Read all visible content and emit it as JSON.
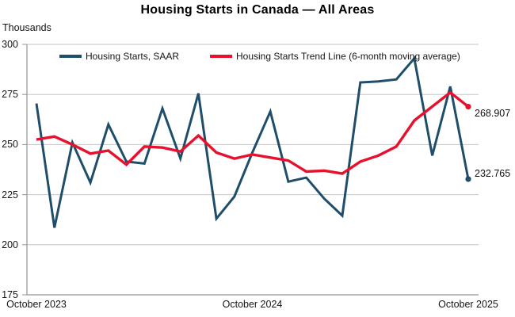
{
  "title": "Housing Starts in Canada — All Areas",
  "y_axis_unit": "Thousands",
  "colors": {
    "saar_line": "#1F4E6B",
    "trend_line": "#E8112D",
    "gridline": "#C6C6C6",
    "axis": "#949494",
    "text": "#111111",
    "background": "#FFFFFF"
  },
  "chart_data": {
    "type": "line",
    "title": "Housing Starts in Canada — All Areas",
    "ylabel": "Thousands",
    "ylim": [
      175,
      300
    ],
    "y_ticks": [
      175,
      200,
      225,
      250,
      275,
      300
    ],
    "grid": "horizontal",
    "legend_position": "top-inside",
    "x": [
      "Oct 2023",
      "Nov 2023",
      "Dec 2023",
      "Jan 2024",
      "Feb 2024",
      "Mar 2024",
      "Apr 2024",
      "May 2024",
      "Jun 2024",
      "Jul 2024",
      "Aug 2024",
      "Sep 2024",
      "Oct 2024",
      "Nov 2024",
      "Dec 2024",
      "Jan 2025",
      "Feb 2025",
      "Mar 2025",
      "Apr 2025",
      "May 2025",
      "Jun 2025",
      "Jul 2025",
      "Aug 2025",
      "Sep 2025",
      "Oct 2025"
    ],
    "x_tick_labels": [
      "October 2023",
      "October 2024",
      "October 2025"
    ],
    "x_tick_indices": [
      0,
      12,
      24
    ],
    "series": [
      {
        "name": "Housing Starts, SAAR",
        "color": "#1F4E6B",
        "stroke_width": 3,
        "end_marker": true,
        "end_label": "232.765",
        "values": [
          270.5,
          208.5,
          251,
          231,
          260,
          241.5,
          240.5,
          268,
          243,
          275.5,
          213,
          224,
          246,
          266.5,
          231.5,
          233.5,
          223,
          214.5,
          281,
          281.5,
          282.5,
          293,
          244.5,
          279,
          232.765
        ]
      },
      {
        "name": "Housing Starts Trend Line (6-month moving average)",
        "color": "#E8112D",
        "stroke_width": 3.4,
        "end_marker": true,
        "end_label": "268.907",
        "values": [
          252.5,
          254,
          250,
          245.5,
          247,
          240,
          249,
          248.5,
          246.5,
          254.5,
          246,
          243,
          245,
          243.5,
          242,
          236.5,
          237,
          235.5,
          241.5,
          244.5,
          249,
          262,
          269,
          276,
          268.907
        ]
      }
    ]
  }
}
